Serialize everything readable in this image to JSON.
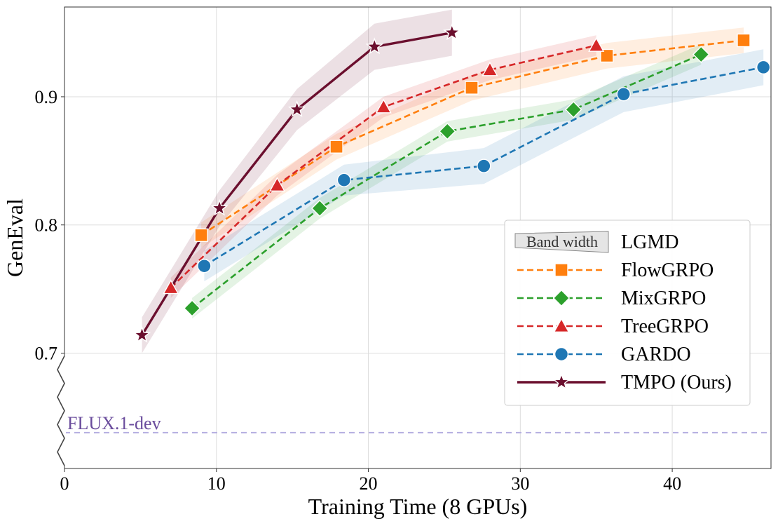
{
  "chart_data": {
    "type": "line",
    "xlabel": "Training Time (8 GPUs)",
    "ylabel": "GenEval",
    "xlim": [
      0,
      46.5
    ],
    "ylim": [
      0.61,
      0.97
    ],
    "y_axis_break": true,
    "xticks": [
      0,
      10,
      20,
      30,
      40
    ],
    "yticks": [
      0.7,
      0.8,
      0.9
    ],
    "xtick_labels": [
      "0",
      "10",
      "20",
      "30",
      "40"
    ],
    "ytick_labels": [
      "0.7",
      "0.8",
      "0.9"
    ],
    "grid": true,
    "legend_position": "center-right",
    "legend_band_label": "Band width",
    "baseline": {
      "label": "FLUX.1-dev",
      "y": 0.638,
      "color": "#b5aee0",
      "label_color": "#6a4c9c"
    },
    "series": [
      {
        "name": "LGMD",
        "legend_only": true,
        "style": "band",
        "color": "#d9d9d9",
        "x": [],
        "y": [],
        "band": []
      },
      {
        "name": "FlowGRPO",
        "color": "#ff7f0e",
        "marker": "square",
        "dash": true,
        "x": [
          9.0,
          17.9,
          26.8,
          35.7,
          44.7
        ],
        "y": [
          0.792,
          0.861,
          0.907,
          0.932,
          0.944
        ],
        "band": [
          0.01,
          0.01,
          0.01,
          0.01,
          0.01
        ]
      },
      {
        "name": "MixGRPO",
        "color": "#2ca02c",
        "marker": "diamond",
        "dash": true,
        "x": [
          8.4,
          16.8,
          25.2,
          33.5,
          41.9
        ],
        "y": [
          0.735,
          0.813,
          0.873,
          0.89,
          0.933
        ],
        "band": [
          0.008,
          0.008,
          0.008,
          0.008,
          0.008
        ]
      },
      {
        "name": "TreeGRPO",
        "color": "#d62728",
        "marker": "triangle",
        "dash": true,
        "x": [
          7.0,
          14.0,
          21.0,
          28.0,
          35.0
        ],
        "y": [
          0.751,
          0.831,
          0.892,
          0.921,
          0.94
        ],
        "band": [
          0.008,
          0.008,
          0.008,
          0.008,
          0.008
        ]
      },
      {
        "name": "GARDO",
        "color": "#1f77b4",
        "marker": "circle",
        "dash": true,
        "x": [
          9.2,
          18.4,
          27.6,
          36.8,
          46.0
        ],
        "y": [
          0.768,
          0.835,
          0.846,
          0.902,
          0.923
        ],
        "band": [
          0.012,
          0.012,
          0.014,
          0.014,
          0.014
        ]
      },
      {
        "name": "TMPO (Ours)",
        "color": "#6b0f2e",
        "marker": "star",
        "dash": false,
        "x": [
          5.1,
          10.2,
          15.3,
          20.4,
          25.5
        ],
        "y": [
          0.714,
          0.813,
          0.89,
          0.939,
          0.95
        ],
        "band": [
          0.014,
          0.014,
          0.016,
          0.018,
          0.018
        ]
      }
    ]
  }
}
